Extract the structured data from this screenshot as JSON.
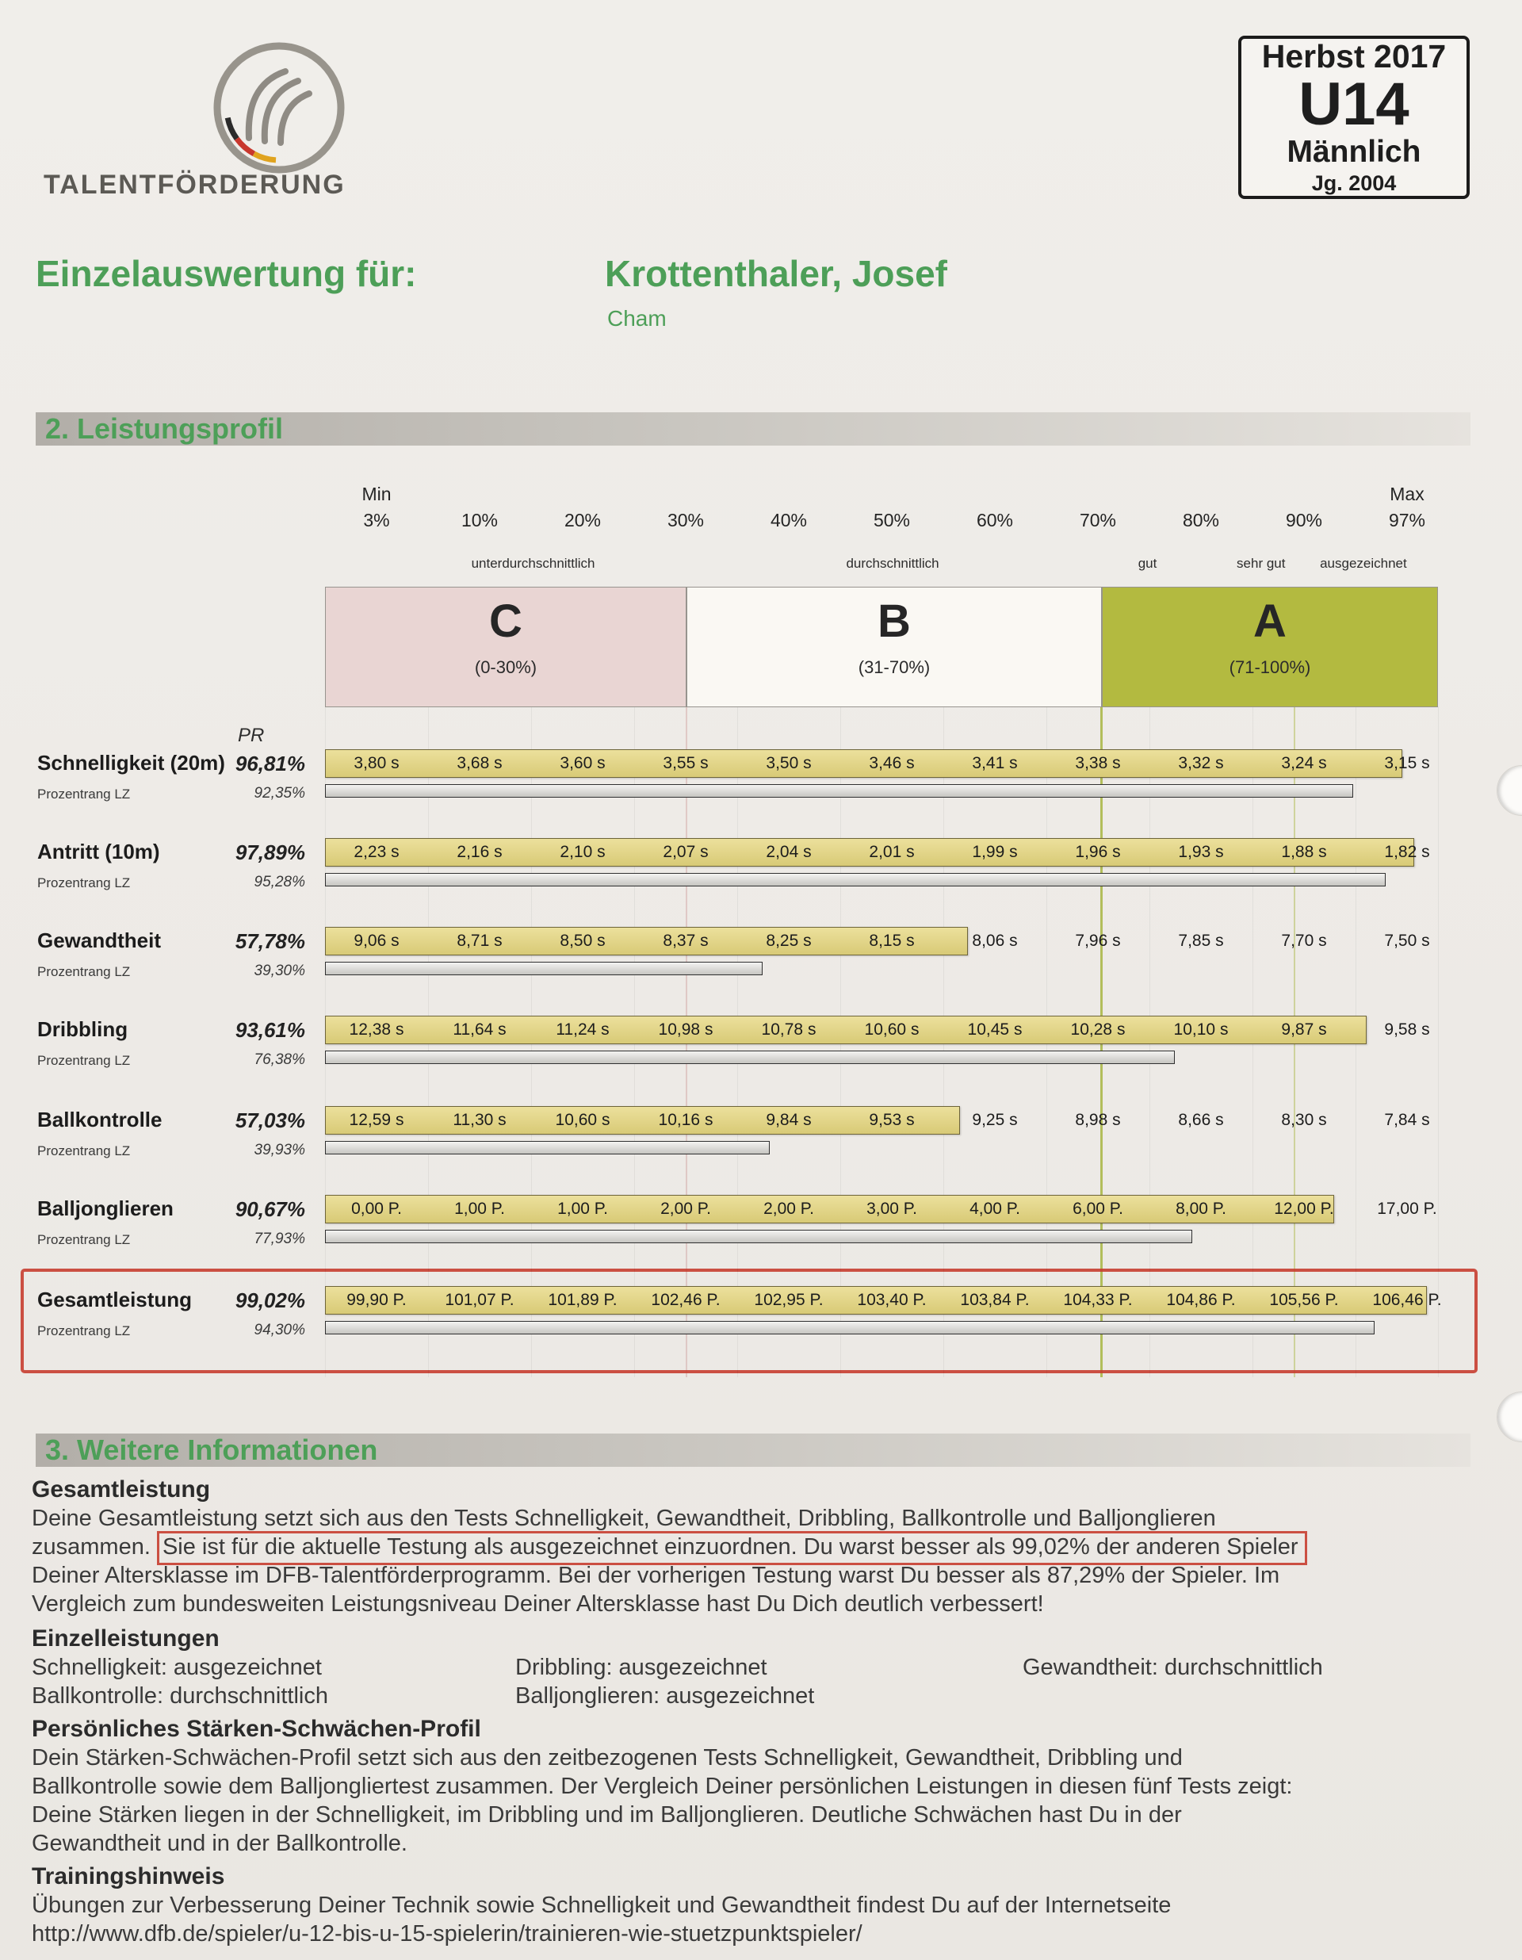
{
  "header": {
    "program": "TALENTFÖRDERUNG",
    "season_box": {
      "season": "Herbst 2017",
      "age_group": "U14",
      "gender": "Männlich",
      "year": "Jg. 2004"
    },
    "title_label": "Einzelauswertung für:",
    "player_name": "Krottenthaler, Josef",
    "player_club": "Cham"
  },
  "sections": {
    "profile_title": "2. Leistungsprofil",
    "info_title": "3. Weitere Informationen"
  },
  "chart_data": {
    "type": "bar",
    "title": "2. Leistungsprofil",
    "scale": {
      "min_label": "Min",
      "max_label": "Max",
      "pr_header": "PR",
      "ticks": [
        "3%",
        "10%",
        "20%",
        "30%",
        "40%",
        "50%",
        "60%",
        "70%",
        "80%",
        "90%",
        "97%"
      ]
    },
    "ratings": [
      {
        "label": "unterdurchschnittlich",
        "x": 0.187
      },
      {
        "label": "durchschnittlich",
        "x": 0.51
      },
      {
        "label": "gut",
        "x": 0.739
      },
      {
        "label": "sehr gut",
        "x": 0.841
      },
      {
        "label": "ausgezeichnet",
        "x": 0.933
      }
    ],
    "zones": [
      {
        "letter": "C",
        "range": "(0-30%)",
        "color": "#e9d5d3"
      },
      {
        "letter": "B",
        "range": "(31-70%)",
        "color": "#faf8f3"
      },
      {
        "letter": "A",
        "range": "(71-100%)",
        "color": "#b3ba40"
      }
    ],
    "lz_label": "Prozentrang LZ",
    "rows": [
      {
        "label": "Schnelligkeit (20m)",
        "pr": "96,81%",
        "pr_pct": 96.81,
        "lz": "92,35%",
        "lz_pct": 92.35,
        "values": [
          "3,80 s",
          "3,68 s",
          "3,60 s",
          "3,55 s",
          "3,50 s",
          "3,46 s",
          "3,41 s",
          "3,38 s",
          "3,32 s",
          "3,24 s",
          "3,15 s"
        ]
      },
      {
        "label": "Antritt (10m)",
        "pr": "97,89%",
        "pr_pct": 97.89,
        "lz": "95,28%",
        "lz_pct": 95.28,
        "values": [
          "2,23 s",
          "2,16 s",
          "2,10 s",
          "2,07 s",
          "2,04 s",
          "2,01 s",
          "1,99 s",
          "1,96 s",
          "1,93 s",
          "1,88 s",
          "1,82 s"
        ]
      },
      {
        "label": "Gewandtheit",
        "pr": "57,78%",
        "pr_pct": 57.78,
        "lz": "39,30%",
        "lz_pct": 39.3,
        "values": [
          "9,06 s",
          "8,71 s",
          "8,50 s",
          "8,37 s",
          "8,25 s",
          "8,15 s",
          "8,06 s",
          "7,96 s",
          "7,85 s",
          "7,70 s",
          "7,50 s"
        ]
      },
      {
        "label": "Dribbling",
        "pr": "93,61%",
        "pr_pct": 93.61,
        "lz": "76,38%",
        "lz_pct": 76.38,
        "values": [
          "12,38 s",
          "11,64 s",
          "11,24 s",
          "10,98 s",
          "10,78 s",
          "10,60 s",
          "10,45 s",
          "10,28 s",
          "10,10 s",
          "9,87 s",
          "9,58 s"
        ]
      },
      {
        "label": "Ballkontrolle",
        "pr": "57,03%",
        "pr_pct": 57.03,
        "lz": "39,93%",
        "lz_pct": 39.93,
        "values": [
          "12,59 s",
          "11,30 s",
          "10,60 s",
          "10,16 s",
          "9,84 s",
          "9,53 s",
          "9,25 s",
          "8,98 s",
          "8,66 s",
          "8,30 s",
          "7,84 s"
        ]
      },
      {
        "label": "Balljonglieren",
        "pr": "90,67%",
        "pr_pct": 90.67,
        "lz": "77,93%",
        "lz_pct": 77.93,
        "values": [
          "0,00 P.",
          "1,00 P.",
          "1,00 P.",
          "2,00 P.",
          "2,00 P.",
          "3,00 P.",
          "4,00 P.",
          "6,00 P.",
          "8,00 P.",
          "12,00 P.",
          "17,00 P."
        ]
      },
      {
        "label": "Gesamtleistung",
        "pr": "99,02%",
        "pr_pct": 99.02,
        "lz": "94,30%",
        "lz_pct": 94.3,
        "highlight": true,
        "values": [
          "99,90 P.",
          "101,07 P.",
          "101,89 P.",
          "102,46 P.",
          "102,95 P.",
          "103,40 P.",
          "103,84 P.",
          "104,33 P.",
          "104,86 P.",
          "105,56 P.",
          "106,46 P."
        ]
      }
    ]
  },
  "info": {
    "gesamt": {
      "heading": "Gesamtleistung",
      "line1": "Deine Gesamtleistung setzt sich aus den Tests Schnelligkeit, Gewandtheit, Dribbling, Ballkontrolle und Balljonglieren",
      "line2_pre": "zusammen. ",
      "line2_boxed": "Sie ist für die aktuelle Testung als ausgezeichnet einzuordnen. Du warst besser als 99,02% der anderen Spieler",
      "line3": "Deiner Altersklasse im DFB-Talentförderprogramm. Bei der vorherigen Testung warst Du besser als 87,29% der Spieler. Im",
      "line4": "Vergleich zum bundesweiten Leistungsniveau Deiner Altersklasse hast Du Dich deutlich verbessert!"
    },
    "einzel": {
      "heading": "Einzelleistungen",
      "items": [
        "Schnelligkeit: ausgezeichnet",
        "Dribbling: ausgezeichnet",
        "Gewandtheit: durchschnittlich",
        "Ballkontrolle: durchschnittlich",
        "Balljonglieren: ausgezeichnet"
      ]
    },
    "profil": {
      "heading": "Persönliches Stärken-Schwächen-Profil",
      "lines": [
        "Dein Stärken-Schwächen-Profil setzt sich aus den zeitbezogenen Tests Schnelligkeit, Gewandtheit, Dribbling und",
        "Ballkontrolle sowie dem Balljongliertest zusammen. Der Vergleich Deiner persönlichen Leistungen in diesen fünf Tests zeigt:",
        "Deine Stärken liegen in der Schnelligkeit, im Dribbling und im Balljonglieren. Deutliche Schwächen hast Du in der",
        "Gewandtheit und in der Ballkontrolle."
      ]
    },
    "training": {
      "heading": "Trainingshinweis",
      "line1": "Übungen zur Verbesserung Deiner Technik sowie Schnelligkeit und Gewandtheit findest Du auf der Internetseite",
      "url": "http://www.dfb.de/spieler/u-12-bis-u-15-spielerin/trainieren-wie-stuetzpunktspieler/"
    }
  },
  "colors": {
    "brand_green": "#4d9f58",
    "bar_fill": "#ddcf7f",
    "bar_border": "#6e653a",
    "annotation_red": "#c93c2d",
    "zone_a": "#b3ba40",
    "zone_c": "#e9d5d3"
  }
}
